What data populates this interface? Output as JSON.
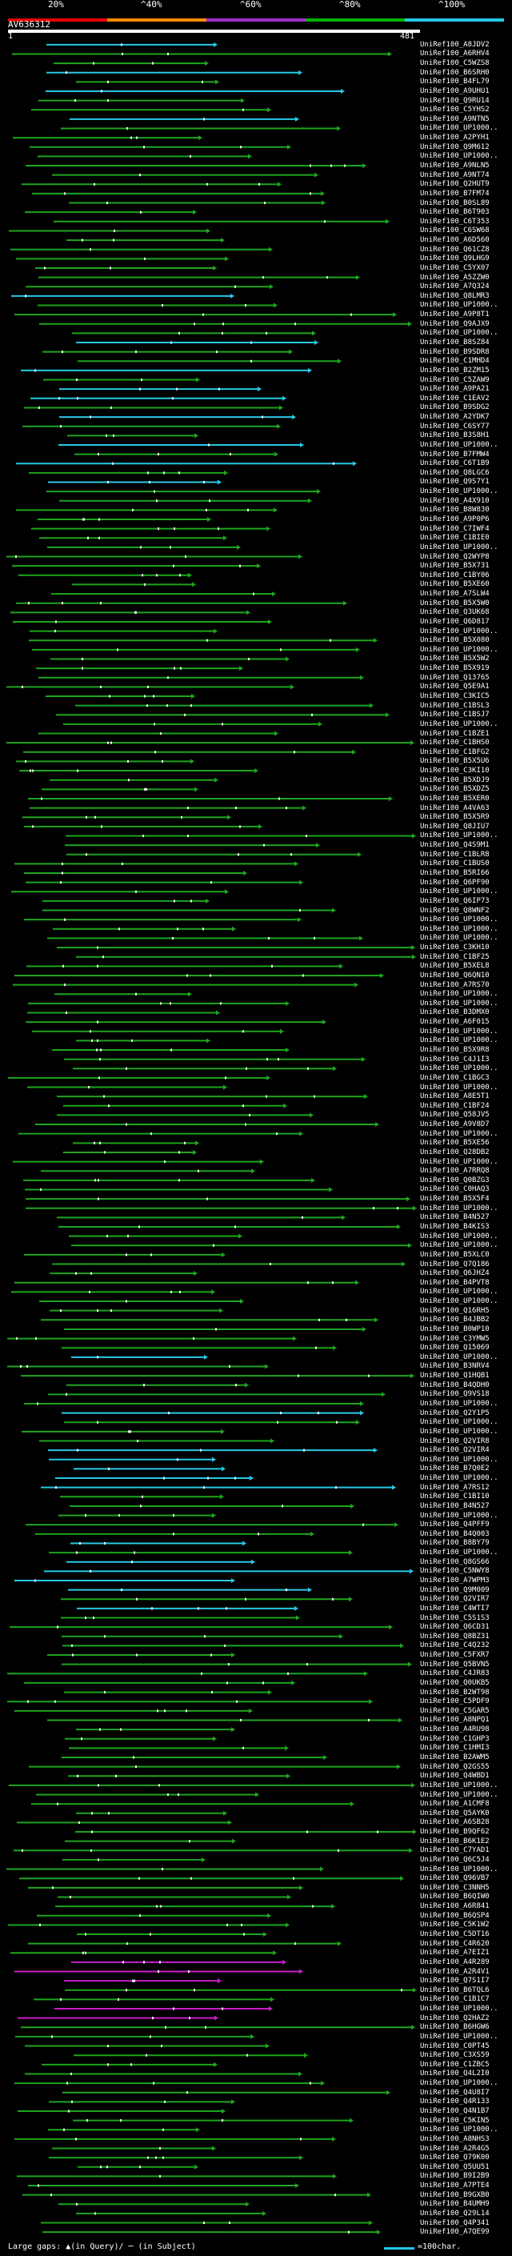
{
  "scale": {
    "labels": [
      "20%",
      "^40%",
      "^60%",
      "^80%",
      "^100%"
    ],
    "colors": [
      "#e60000",
      "#ff8c00",
      "#9b30c8",
      "#00b400",
      "#28c8e6"
    ]
  },
  "query": {
    "id": "AV636312",
    "start": "1",
    "end": "481"
  },
  "footer": {
    "large_gaps": "Large gaps: ▲(in Query)/ ─ (in Subject)",
    "legend": "=100char."
  },
  "hit_colors": {
    "green": "#1ea51e",
    "cyan": "#28c8e6",
    "magenta": "#c81ec8"
  },
  "hits": [
    "UniRef100_A8JDV2",
    "UniRef100_A6RHV4",
    "UniRef100_C5WZS8",
    "UniRef100_B6SRH0",
    "UniRef100_B4FL79",
    "UniRef100_A9UHU1",
    "UniRef100_Q9RU14",
    "UniRef100_C5YHS2",
    "UniRef100_A9NTN5",
    "UniRef100_UP1000..",
    "UniRef100_A2PYH1",
    "UniRef100_Q9M612",
    "UniRef100_UP1000..",
    "UniRef100_A9NLN5",
    "UniRef100_A9NT74",
    "UniRef100_Q2HUT9",
    "UniRef100_B7FM74",
    "UniRef100_B0SL89",
    "UniRef100_B6T903",
    "UniRef100_C6T353",
    "UniRef100_C6SW68",
    "UniRef100_A6D560",
    "UniRef100_Q61CZ8",
    "UniRef100_Q9LHG9",
    "UniRef100_C5YX07",
    "UniRef100_A5ZZW0",
    "UniRef100_A7Q324",
    "UniRef100_Q8LMR3",
    "UniRef100_UP1000..",
    "UniRef100_A9P8T1",
    "UniRef100_Q9AJX9",
    "UniRef100_UP1000..",
    "UniRef100_B8SZ84",
    "UniRef100_B9SDR8",
    "UniRef100_C1MHD4",
    "UniRef100_B2ZM15",
    "UniRef100_C5ZAW9",
    "UniRef100_A9PA21",
    "UniRef100_C1EAV2",
    "UniRef100_B9SDG2",
    "UniRef100_A2YDK7",
    "UniRef100_C6SY77",
    "UniRef100_B3S8H1",
    "UniRef100_UP1000..",
    "UniRef100_B7FMW4",
    "UniRef100_C6T1B9",
    "UniRef100_Q8LGC6",
    "UniRef100_Q9S7Y1",
    "UniRef100_UP1000..",
    "UniRef100_A4X910",
    "UniRef100_B8W830",
    "UniRef100_A9P0P6",
    "UniRef100_C7IWF4",
    "UniRef100_C1BIE0",
    "UniRef100_UP1000..",
    "UniRef100_Q2WYP8",
    "UniRef100_B5X731",
    "UniRef100_C1BY06",
    "UniRef100_B5XE60",
    "UniRef100_A7SLW4",
    "UniRef100_B5X5W0",
    "UniRef100_Q3UK68",
    "UniRef100_Q6D817",
    "UniRef100_UP1000..",
    "UniRef100_B5X080",
    "UniRef100_UP1000..",
    "UniRef100_B5X5W2",
    "UniRef100_B5X919",
    "UniRef100_Q13765",
    "UniRef100_Q5E9A1",
    "UniRef100_C3KIC5",
    "UniRef100_C1BSL3",
    "UniRef100_C1BSJ7",
    "UniRef100_UP1000..",
    "UniRef100_C1BZE1",
    "UniRef100_C1BHS0",
    "UniRef100_C1BFG2",
    "UniRef100_B5X5U6",
    "UniRef100_C3KI10",
    "UniRef100_B5XDJ9",
    "UniRef100_B5XDZ5",
    "UniRef100_B5XER0",
    "UniRef100_A4VA63",
    "UniRef100_B5X5R9",
    "UniRef100_Q8JIU7",
    "UniRef100_UP1000..",
    "UniRef100_Q4S9M1",
    "UniRef100_C1BLR8",
    "UniRef100_C1BUS0",
    "UniRef100_B5RI66",
    "UniRef100_Q6PF90",
    "UniRef100_UP1000..",
    "UniRef100_Q6IP73",
    "UniRef100_Q8WNF2",
    "UniRef100_UP1000..",
    "UniRef100_UP1000..",
    "UniRef100_UP1000..",
    "UniRef100_C3KH10",
    "UniRef100_C1BF25",
    "UniRef100_B5XEL8",
    "UniRef100_Q6QN10",
    "UniRef100_A7RS70",
    "UniRef100_UP1000..",
    "UniRef100_UP1000..",
    "UniRef100_B3DMX0",
    "UniRef100_A6F015",
    "UniRef100_UP1000..",
    "UniRef100_UP1000..",
    "UniRef100_B5X9R8",
    "UniRef100_C4J1I3",
    "UniRef100_UP1000..",
    "UniRef100_C1BGC3",
    "UniRef100_UP1000..",
    "UniRef100_A8E5T1",
    "UniRef100_C1BF24",
    "UniRef100_Q58JV5",
    "UniRef100_A9V8D7",
    "UniRef100_UP1000..",
    "UniRef100_B5XE56",
    "UniRef100_Q28DB2",
    "UniRef100_UP1000..",
    "UniRef100_A7RRQ8",
    "UniRef100_Q0BZG3",
    "UniRef100_C0HAQ3",
    "UniRef100_B5X5F4",
    "UniRef100_UP1000..",
    "UniRef100_B4N527",
    "UniRef100_B4KIS3",
    "UniRef100_UP1000..",
    "UniRef100_UP1000..",
    "UniRef100_B5XLC0",
    "UniRef100_Q7Q186",
    "UniRef100_Q6JHZ4",
    "UniRef100_B4PVT8",
    "UniRef100_UP1000..",
    "UniRef100_UP1000..",
    "UniRef100_Q16RH5",
    "UniRef100_B4JBB2",
    "UniRef100_B0WP10",
    "UniRef100_C3YMW5",
    "UniRef100_Q15069",
    "UniRef100_UP1000..",
    "UniRef100_B3NRV4",
    "UniRef100_Q1HQB1",
    "UniRef100_B4QDH0",
    "UniRef100_Q9VS18",
    "UniRef100_UP1000..",
    "UniRef100_Q2Y1P5",
    "UniRef100_UP1000..",
    "UniRef100_UP1000..",
    "UniRef100_Q2VIR8",
    "UniRef100_Q2VIR4",
    "UniRef100_UP1000..",
    "UniRef100_B7Q0E2",
    "UniRef100_UP1000..",
    "UniRef100_A7RS12",
    "UniRef100_C1BI10",
    "UniRef100_B4N527",
    "UniRef100_UP1000..",
    "UniRef100_Q4PFF9",
    "UniRef100_B4Q003",
    "UniRef100_B8BY79",
    "UniRef100_UP1000..",
    "UniRef100_Q8GS66",
    "UniRef100_C5NWY8",
    "UniRef100_A7WPM3",
    "UniRef100_Q9M009",
    "UniRef100_Q2VIR7",
    "UniRef100_C4WTI7",
    "UniRef100_C5S1S3",
    "UniRef100_Q6CD31",
    "UniRef100_Q8BZ31",
    "UniRef100_C4Q232",
    "UniRef100_C5FXR7",
    "UniRef100_Q5BVN5",
    "UniRef100_C4JR83",
    "UniRef100_Q0UKB5",
    "UniRef100_B2WT98",
    "UniRef100_C5PDF9",
    "UniRef100_C5GAR5",
    "UniRef100_A8NPQ1",
    "UniRef100_A4RU98",
    "UniRef100_C1GHP3",
    "UniRef100_C1HMI3",
    "UniRef100_B2AWM5",
    "UniRef100_Q2GS55",
    "UniRef100_Q4WBD1",
    "UniRef100_UP1000..",
    "UniRef100_UP1000..",
    "UniRef100_A1CMF8",
    "UniRef100_Q5AYK0",
    "UniRef100_A6SB28",
    "UniRef100_B9QF62",
    "UniRef100_B6K1E2",
    "UniRef100_C7YAD1",
    "UniRef100_Q6C5J4",
    "UniRef100_UP1000..",
    "UniRef100_Q96VB7",
    "UniRef100_C3NNH5",
    "UniRef100_B6QIW0",
    "UniRef100_A6R841",
    "UniRef100_B6QSP4",
    "UniRef100_C5K1W2",
    "UniRef100_C5DT16",
    "UniRef100_C4R620",
    "UniRef100_A7EIZ1",
    "UniRef100_A4R289",
    "UniRef100_A2R4V1",
    "UniRef100_Q7S1I7",
    "UniRef100_B6TQL6",
    "UniRef100_C1B1C7",
    "UniRef100_UP1000..",
    "UniRef100_Q2HAZ2",
    "UniRef100_B6HGW6",
    "UniRef100_UP1000..",
    "UniRef100_C0PT45",
    "UniRef100_C3XS59",
    "UniRef100_C1ZBC5",
    "UniRef100_Q4L2I0",
    "UniRef100_UP1000..",
    "UniRef100_Q4U8I7",
    "UniRef100_Q4R133",
    "UniRef100_Q4N1B7",
    "UniRef100_C5KIN5",
    "UniRef100_UP1000..",
    "UniRef100_A8NHS3",
    "UniRef100_A2R4G5",
    "UniRef100_Q79K00",
    "UniRef100_Q5UU51",
    "UniRef100_B9I2B9",
    "UniRef100_A7PTE4",
    "UniRef100_B9GXB0",
    "UniRef100_B4UMH9",
    "UniRef100_Q29L14",
    "UniRef100_Q4P341",
    "UniRef100_A7QE99"
  ]
}
